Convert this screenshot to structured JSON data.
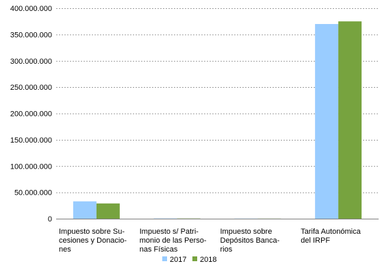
{
  "chart_data": {
    "type": "bar",
    "title": "",
    "xlabel": "",
    "ylabel": "",
    "ylim": [
      0,
      400000000
    ],
    "yticks": [
      0,
      50000000,
      100000000,
      150000000,
      200000000,
      250000000,
      300000000,
      350000000,
      400000000
    ],
    "ytick_labels": [
      "0",
      "50.000.000",
      "100.000.000",
      "150.000.000",
      "200.000.000",
      "250.000.000",
      "300.000.000",
      "350.000.000",
      "400.000.000"
    ],
    "grid": true,
    "legend_position": "bottom",
    "categories": [
      [
        "Impuesto sobre Su-",
        "cesiones y Donacio-",
        "nes"
      ],
      [
        "Impuesto s/ Patri-",
        "monio de las Perso-",
        "nas Físicas"
      ],
      [
        "Impuesto sobre",
        "Depósitos Banca-",
        "rios"
      ],
      [
        "Tarifa Autonómica",
        "del IRPF"
      ]
    ],
    "series": [
      {
        "name": "2017",
        "color": "#99ccff",
        "values": [
          33000000,
          500000,
          300000,
          370000000
        ]
      },
      {
        "name": "2018",
        "color": "#77a33f",
        "values": [
          29000000,
          400000,
          200000,
          375000000
        ]
      }
    ]
  }
}
